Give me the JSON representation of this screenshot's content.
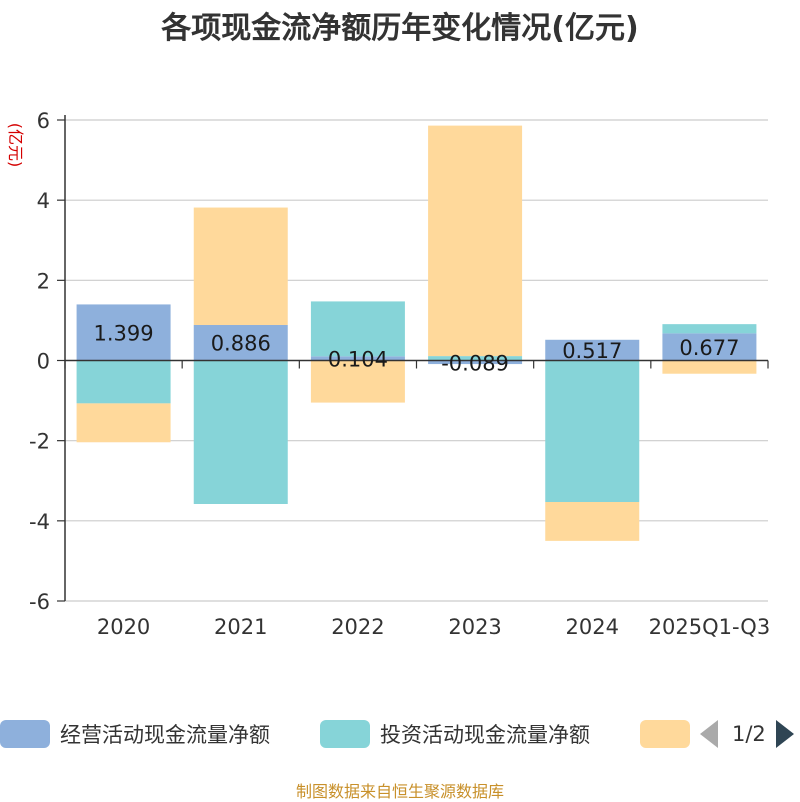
{
  "chart_data": {
    "type": "bar",
    "stacked": true,
    "title": "各项现金流净额历年变化情况(亿元)",
    "ylabel": "(亿元)",
    "categories": [
      "2020",
      "2021",
      "2022",
      "2023",
      "2024",
      "2025Q1-Q3"
    ],
    "ylim": [
      -6,
      6
    ],
    "yticks": [
      -6,
      -4,
      -2,
      0,
      2,
      4,
      6
    ],
    "grid": true,
    "series": [
      {
        "name": "经营活动现金流量净额",
        "color": "#8eb0dc",
        "values": [
          1.399,
          0.886,
          0.104,
          -0.089,
          0.517,
          0.677
        ],
        "labels": [
          "1.399",
          "0.886",
          "0.104",
          "-0.089",
          "0.517",
          "0.677"
        ]
      },
      {
        "name": "投资活动现金流量净额",
        "color": "#86d4d8",
        "values": [
          -1.07,
          -3.58,
          1.37,
          0.11,
          -3.53,
          0.23
        ]
      },
      {
        "name": "",
        "color": "#ffd99b",
        "values": [
          -0.97,
          2.93,
          -1.05,
          5.75,
          -0.97,
          -0.33
        ]
      }
    ],
    "legend_position": "bottom"
  },
  "legend": {
    "items": [
      {
        "label": "经营活动现金流量净额",
        "color": "#8eb0dc"
      },
      {
        "label": "投资活动现金流量净额",
        "color": "#86d4d8"
      },
      {
        "label": "",
        "color": "#ffd99b"
      }
    ],
    "page": "1/2"
  },
  "source": "制图数据来自恒生聚源数据库"
}
